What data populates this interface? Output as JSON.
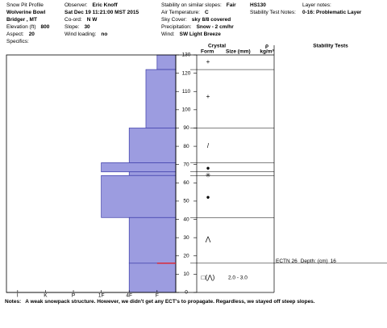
{
  "header": {
    "columns": [
      {
        "items": [
          {
            "label": "Snow Pit Profile"
          },
          {
            "value": "Wolverine Bowl"
          },
          {
            "value": "Bridger , MT"
          },
          {
            "label": "Elevation (ft)",
            "value": "800"
          },
          {
            "label": "Aspect:",
            "value": "20"
          },
          {
            "label": "Specifics:"
          }
        ]
      },
      {
        "items": [
          {
            "label": "Observer:",
            "value": "Eric Knoff"
          },
          {
            "value": "Sat Dec 19 11:21:00 MST 2015"
          },
          {
            "label": "Co-ord:",
            "value": "N W"
          },
          {
            "label": "Slope:",
            "value": "30"
          },
          {
            "label": "Wind loading:",
            "value": "no"
          }
        ]
      },
      {
        "items": [
          {
            "label": "Stability on similar slopes:",
            "value": "Fair"
          },
          {
            "label": "Air Temperature:",
            "value": "C"
          },
          {
            "label": "Sky Cover:",
            "value": "sky 8/8 covered"
          },
          {
            "label": "Precipitation:",
            "value": "Snow - 2 cm/hr"
          },
          {
            "label": "Wind:",
            "value": "SW Light Breeze"
          }
        ]
      },
      {
        "items": [
          {
            "value": "HS130"
          },
          {
            "label": "Stability Test Notes:"
          }
        ]
      },
      {
        "items": [
          {
            "label": "Layer notes:"
          },
          {
            "value": "0-16: Problematic Layer"
          }
        ]
      }
    ]
  },
  "profile": {
    "hardness_lim": [
      6.4,
      0.33
    ],
    "hardness_ticks": [
      {
        "value": 6,
        "label": "I"
      },
      {
        "value": 5,
        "label": "K"
      },
      {
        "value": 4,
        "label": "P"
      },
      {
        "value": 3,
        "label": "1F"
      },
      {
        "value": 2,
        "label": "4F"
      },
      {
        "value": 1,
        "label": "F"
      }
    ],
    "height_lim": [
      0,
      130
    ],
    "height_ticks": [
      0,
      10,
      20,
      30,
      40,
      50,
      60,
      70,
      80,
      90,
      100,
      110,
      120,
      130
    ],
    "color": "#9c9ce0",
    "layers": [
      {
        "bottom": 122,
        "top": 130,
        "hardness": 1
      },
      {
        "bottom": 90,
        "top": 122,
        "hardness": 1.4
      },
      {
        "bottom": 71,
        "top": 90,
        "hardness": 2
      },
      {
        "bottom": 66,
        "top": 71,
        "hardness": 3
      },
      {
        "bottom": 64,
        "top": 66,
        "hardness": 2
      },
      {
        "bottom": 41,
        "top": 64,
        "hardness": 3
      },
      {
        "bottom": 16,
        "top": 41,
        "hardness": 2
      },
      {
        "bottom": 0,
        "top": 16,
        "hardness": 2
      }
    ]
  },
  "crystals": {
    "title": "Crystal",
    "form_header": "Form",
    "size_header": "Size (mm)",
    "density_title": "ρ",
    "density_header": "kg/m³",
    "items": [
      {
        "height": 126,
        "form": "+"
      },
      {
        "height": 107,
        "form": "+"
      },
      {
        "height": 80,
        "form": "/"
      },
      {
        "height": 68,
        "form": "●"
      },
      {
        "height": 64,
        "form": "✳"
      },
      {
        "height": 52,
        "form": "●"
      },
      {
        "height": 29,
        "form": "⋀"
      },
      {
        "height": 8,
        "form": "□(⋀)",
        "size": "2.0 - 3.0"
      }
    ]
  },
  "stability": {
    "title": "Stability Tests",
    "tests": [
      {
        "test": "ECTN 26",
        "depth_label": "Depth: (cm)",
        "depth": 16
      }
    ]
  },
  "notes": {
    "label": "Notes:",
    "text": "A weak snowpack structure. However, we didn't get any ECT's to propagate. Regardless, we stayed off steep slopes."
  }
}
